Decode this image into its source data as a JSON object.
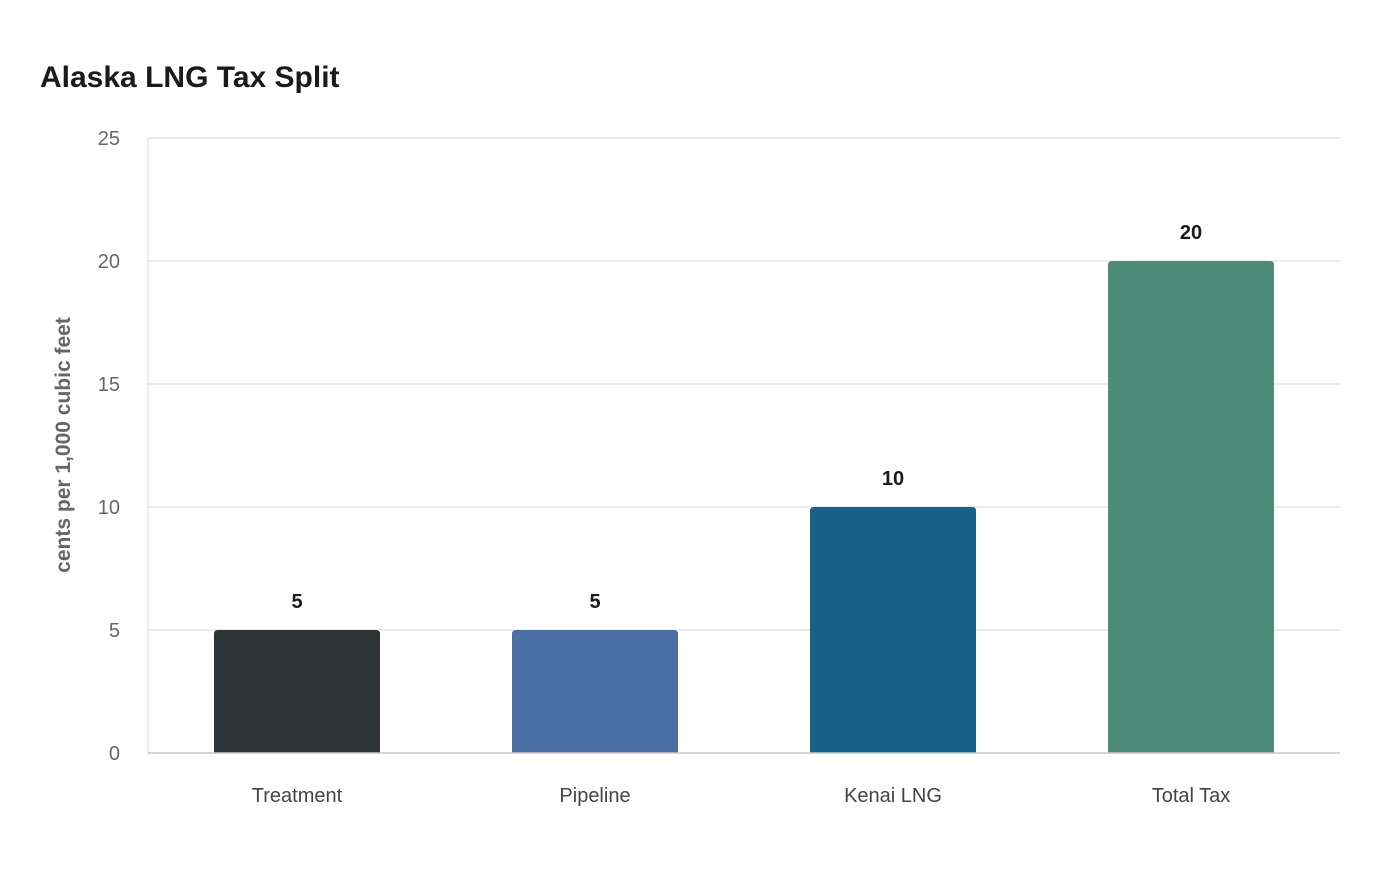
{
  "chart_data": {
    "type": "bar",
    "title": "Alaska LNG Tax Split",
    "xlabel": "",
    "ylabel": "cents per 1,000 cubic feet",
    "categories": [
      "Treatment",
      "Pipeline",
      "Kenai LNG",
      "Total Tax"
    ],
    "values": [
      5,
      5,
      10,
      20
    ],
    "value_labels": [
      "5",
      "5",
      "10",
      "20"
    ],
    "colors": [
      "#2d3436",
      "#4a6fa5",
      "#186287",
      "#4e8c7a"
    ],
    "ylim": [
      0,
      25
    ],
    "yticks": [
      0,
      5,
      10,
      15,
      20,
      25
    ],
    "ytick_labels": [
      "0",
      "5",
      "10",
      "15",
      "20",
      "25"
    ],
    "grid": true,
    "legend": "none"
  }
}
